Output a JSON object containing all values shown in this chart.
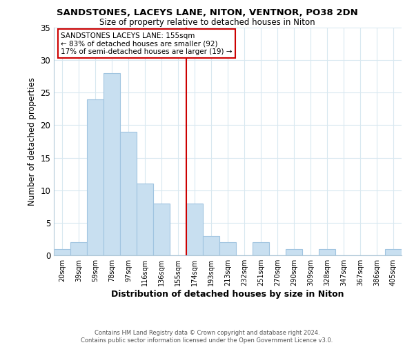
{
  "title": "SANDSTONES, LACEYS LANE, NITON, VENTNOR, PO38 2DN",
  "subtitle": "Size of property relative to detached houses in Niton",
  "xlabel": "Distribution of detached houses by size in Niton",
  "ylabel": "Number of detached properties",
  "bar_color": "#c8dff0",
  "bar_edgecolor": "#a0c4e0",
  "bin_labels": [
    "20sqm",
    "39sqm",
    "59sqm",
    "78sqm",
    "97sqm",
    "116sqm",
    "136sqm",
    "155sqm",
    "174sqm",
    "193sqm",
    "213sqm",
    "232sqm",
    "251sqm",
    "270sqm",
    "290sqm",
    "309sqm",
    "328sqm",
    "347sqm",
    "367sqm",
    "386sqm",
    "405sqm"
  ],
  "bar_heights": [
    1,
    2,
    24,
    28,
    19,
    11,
    8,
    0,
    8,
    3,
    2,
    0,
    2,
    0,
    1,
    0,
    1,
    0,
    0,
    0,
    1
  ],
  "vline_x_index": 7,
  "vline_color": "#cc0000",
  "ylim": [
    0,
    35
  ],
  "yticks": [
    0,
    5,
    10,
    15,
    20,
    25,
    30,
    35
  ],
  "annotation_title": "SANDSTONES LACEYS LANE: 155sqm",
  "annotation_line1": "← 83% of detached houses are smaller (92)",
  "annotation_line2": "17% of semi-detached houses are larger (19) →",
  "footer_line1": "Contains HM Land Registry data © Crown copyright and database right 2024.",
  "footer_line2": "Contains public sector information licensed under the Open Government Licence v3.0.",
  "background_color": "#ffffff",
  "grid_color": "#d8e8f0"
}
